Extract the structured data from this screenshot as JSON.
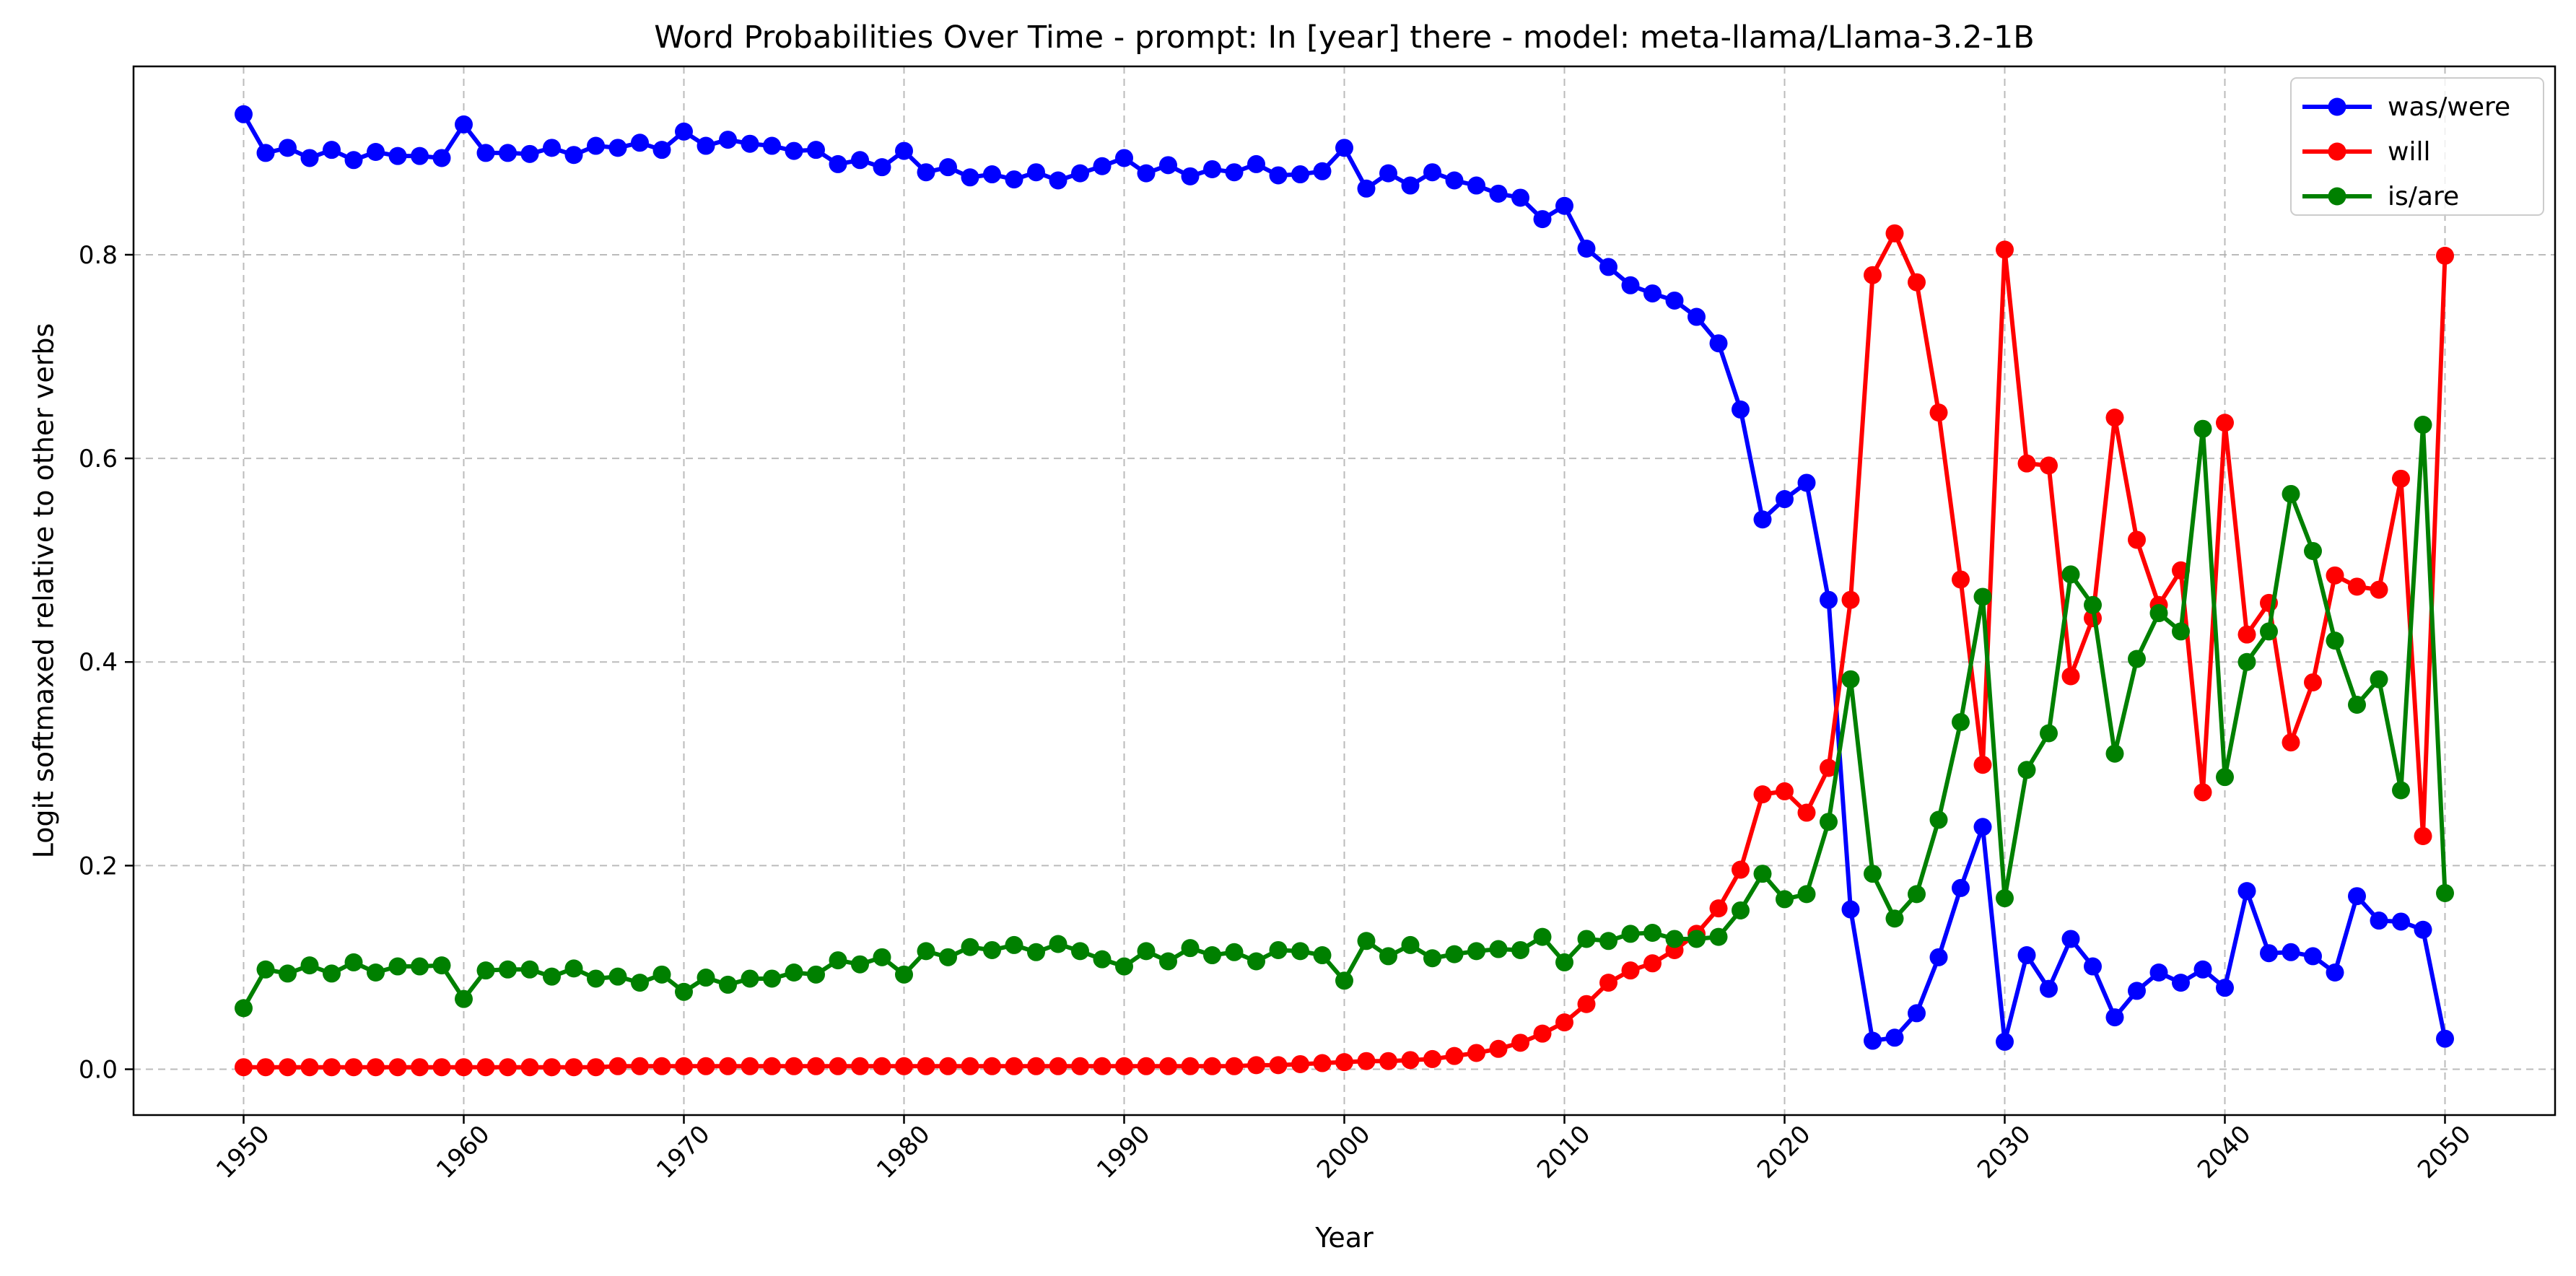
{
  "chart_data": {
    "type": "line",
    "title": "Word Probabilities Over Time - prompt: In [year] there - model: meta-llama/Llama-3.2-1B",
    "xlabel": "Year",
    "ylabel": "Logit softmaxed relative to other verbs",
    "xlim": [
      1945,
      2055
    ],
    "ylim": [
      -0.045,
      0.985
    ],
    "x_ticks": [
      1950,
      1960,
      1970,
      1980,
      1990,
      2000,
      2010,
      2020,
      2030,
      2040,
      2050
    ],
    "x_tick_labels": [
      "1950",
      "1960",
      "1970",
      "1980",
      "1990",
      "2000",
      "2010",
      "2020",
      "2030",
      "2040",
      "2050"
    ],
    "y_ticks": [
      0.0,
      0.2,
      0.4,
      0.6,
      0.8
    ],
    "y_tick_labels": [
      "0.0",
      "0.2",
      "0.4",
      "0.6",
      "0.8"
    ],
    "grid": true,
    "legend_position": "top-right",
    "x_start": 1950,
    "series": [
      {
        "name": "was/were",
        "color": "#0000ff",
        "values": [
          0.938,
          0.9,
          0.905,
          0.895,
          0.903,
          0.893,
          0.901,
          0.897,
          0.897,
          0.895,
          0.928,
          0.9,
          0.9,
          0.899,
          0.905,
          0.898,
          0.907,
          0.905,
          0.91,
          0.903,
          0.921,
          0.907,
          0.913,
          0.909,
          0.907,
          0.902,
          0.903,
          0.889,
          0.893,
          0.886,
          0.902,
          0.881,
          0.886,
          0.876,
          0.879,
          0.874,
          0.881,
          0.873,
          0.88,
          0.887,
          0.895,
          0.88,
          0.888,
          0.877,
          0.884,
          0.881,
          0.889,
          0.878,
          0.879,
          0.882,
          0.905,
          0.865,
          0.88,
          0.868,
          0.881,
          0.873,
          0.868,
          0.86,
          0.856,
          0.835,
          0.848,
          0.806,
          0.788,
          0.77,
          0.762,
          0.755,
          0.739,
          0.713,
          0.648,
          0.54,
          0.56,
          0.576,
          0.461,
          0.157,
          0.028,
          0.031,
          0.055,
          0.11,
          0.178,
          0.238,
          0.027,
          0.112,
          0.079,
          0.128,
          0.101,
          0.051,
          0.077,
          0.095,
          0.085,
          0.098,
          0.08,
          0.175,
          0.114,
          0.115,
          0.111,
          0.095,
          0.17,
          0.146,
          0.145,
          0.137,
          0.03
        ]
      },
      {
        "name": "will",
        "color": "#ff0000",
        "values": [
          0.002,
          0.002,
          0.002,
          0.002,
          0.002,
          0.002,
          0.002,
          0.002,
          0.002,
          0.002,
          0.002,
          0.002,
          0.002,
          0.002,
          0.002,
          0.002,
          0.002,
          0.003,
          0.003,
          0.003,
          0.003,
          0.003,
          0.003,
          0.003,
          0.003,
          0.003,
          0.003,
          0.003,
          0.003,
          0.003,
          0.003,
          0.003,
          0.003,
          0.003,
          0.003,
          0.003,
          0.003,
          0.003,
          0.003,
          0.003,
          0.003,
          0.003,
          0.003,
          0.003,
          0.003,
          0.003,
          0.004,
          0.004,
          0.005,
          0.006,
          0.007,
          0.008,
          0.008,
          0.009,
          0.01,
          0.013,
          0.016,
          0.02,
          0.026,
          0.035,
          0.046,
          0.064,
          0.085,
          0.097,
          0.104,
          0.117,
          0.133,
          0.158,
          0.196,
          0.27,
          0.273,
          0.252,
          0.296,
          0.461,
          0.78,
          0.821,
          0.773,
          0.645,
          0.481,
          0.299,
          0.805,
          0.595,
          0.593,
          0.386,
          0.443,
          0.64,
          0.52,
          0.456,
          0.49,
          0.272,
          0.635,
          0.427,
          0.458,
          0.321,
          0.38,
          0.485,
          0.474,
          0.471,
          0.58,
          0.229,
          0.799
        ]
      },
      {
        "name": "is/are",
        "color": "#008000",
        "values": [
          0.06,
          0.098,
          0.094,
          0.102,
          0.094,
          0.105,
          0.095,
          0.101,
          0.101,
          0.102,
          0.069,
          0.097,
          0.098,
          0.098,
          0.091,
          0.099,
          0.089,
          0.091,
          0.085,
          0.093,
          0.076,
          0.09,
          0.083,
          0.089,
          0.089,
          0.095,
          0.093,
          0.107,
          0.103,
          0.11,
          0.093,
          0.116,
          0.11,
          0.12,
          0.117,
          0.122,
          0.115,
          0.123,
          0.116,
          0.108,
          0.101,
          0.116,
          0.106,
          0.119,
          0.112,
          0.115,
          0.106,
          0.117,
          0.116,
          0.112,
          0.087,
          0.126,
          0.111,
          0.122,
          0.109,
          0.113,
          0.116,
          0.118,
          0.117,
          0.13,
          0.105,
          0.128,
          0.126,
          0.133,
          0.134,
          0.128,
          0.128,
          0.13,
          0.156,
          0.192,
          0.167,
          0.172,
          0.243,
          0.383,
          0.192,
          0.148,
          0.172,
          0.245,
          0.341,
          0.464,
          0.168,
          0.294,
          0.33,
          0.486,
          0.456,
          0.31,
          0.403,
          0.448,
          0.43,
          0.629,
          0.287,
          0.4,
          0.43,
          0.565,
          0.509,
          0.421,
          0.358,
          0.383,
          0.274,
          0.633,
          0.173
        ]
      }
    ]
  }
}
